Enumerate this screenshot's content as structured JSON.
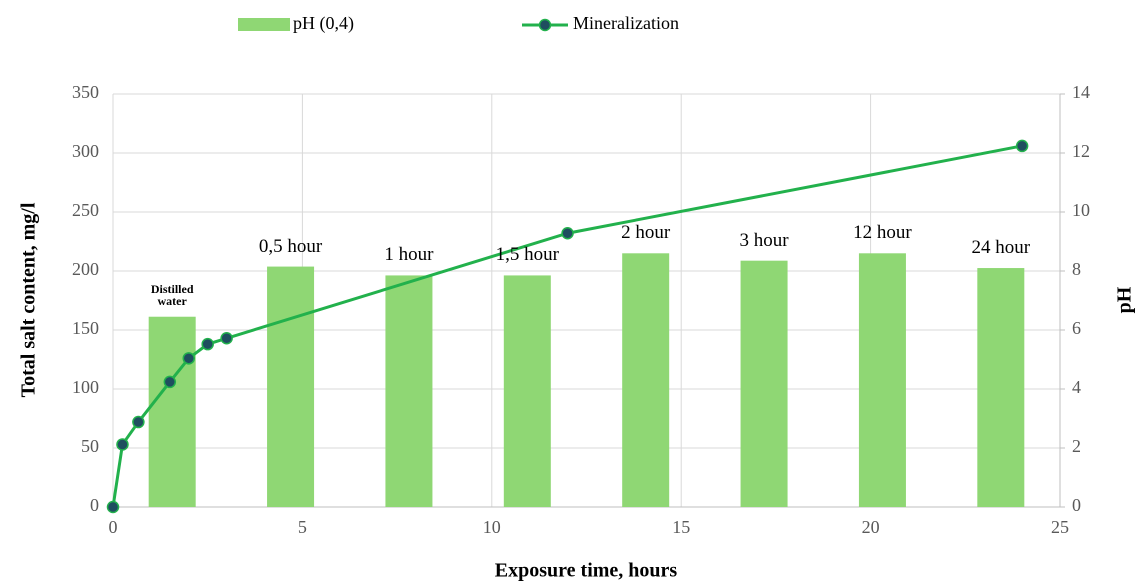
{
  "chart_data": {
    "type": "combo",
    "xlabel": "Exposure time, hours",
    "ylabel": "Total salt content, mg/l",
    "y2label": "pH",
    "categories": [
      "Distilled water",
      "0,5 hour",
      "1 hour",
      "1,5 hour",
      "2 hour",
      "3 hour",
      "12 hour",
      "24 hour"
    ],
    "series": [
      {
        "name": "pH (0,4)",
        "type": "bar",
        "axis": "y2",
        "color": "#8fd774",
        "values": [
          6.45,
          8.15,
          7.85,
          7.85,
          8.6,
          8.35,
          8.6,
          8.1
        ]
      },
      {
        "name": "Mineralization",
        "type": "line",
        "color": "#22b14c",
        "marker_color": "#1f4e5f",
        "x": [
          0,
          0.25,
          0.67,
          1.5,
          2,
          2.5,
          3,
          12,
          24
        ],
        "values": [
          0,
          53,
          72,
          106,
          126,
          138,
          143,
          232,
          306
        ]
      }
    ],
    "xlim": [
      0,
      25
    ],
    "xticks": [
      0,
      5,
      10,
      15,
      20,
      25
    ],
    "ylim": [
      0,
      350
    ],
    "yticks": [
      0,
      50,
      100,
      150,
      200,
      250,
      300,
      350
    ],
    "y2lim": [
      0,
      14
    ],
    "y2ticks": [
      0,
      2,
      4,
      6,
      8,
      10,
      12,
      14
    ],
    "grid": true,
    "legend": "top"
  }
}
